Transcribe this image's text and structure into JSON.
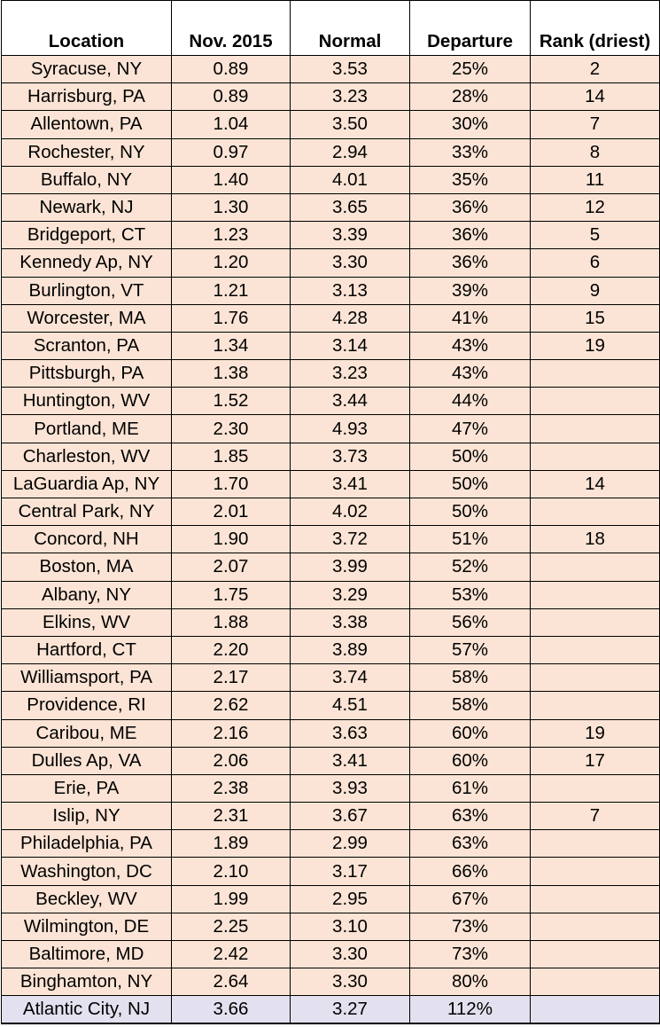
{
  "columns": [
    "Location",
    "Nov. 2015",
    "Normal",
    "Departure",
    "Rank (driest)"
  ],
  "rows": [
    [
      "Syracuse, NY",
      "0.89",
      "3.53",
      "25%",
      "2"
    ],
    [
      "Harrisburg, PA",
      "0.89",
      "3.23",
      "28%",
      "14"
    ],
    [
      "Allentown, PA",
      "1.04",
      "3.50",
      "30%",
      "7"
    ],
    [
      "Rochester, NY",
      "0.97",
      "2.94",
      "33%",
      "8"
    ],
    [
      "Buffalo, NY",
      "1.40",
      "4.01",
      "35%",
      "11"
    ],
    [
      "Newark, NJ",
      "1.30",
      "3.65",
      "36%",
      "12"
    ],
    [
      "Bridgeport, CT",
      "1.23",
      "3.39",
      "36%",
      "5"
    ],
    [
      "Kennedy Ap, NY",
      "1.20",
      "3.30",
      "36%",
      "6"
    ],
    [
      "Burlington, VT",
      "1.21",
      "3.13",
      "39%",
      "9"
    ],
    [
      "Worcester, MA",
      "1.76",
      "4.28",
      "41%",
      "15"
    ],
    [
      "Scranton, PA",
      "1.34",
      "3.14",
      "43%",
      "19"
    ],
    [
      "Pittsburgh, PA",
      "1.38",
      "3.23",
      "43%",
      ""
    ],
    [
      "Huntington, WV",
      "1.52",
      "3.44",
      "44%",
      ""
    ],
    [
      "Portland, ME",
      "2.30",
      "4.93",
      "47%",
      ""
    ],
    [
      "Charleston, WV",
      "1.85",
      "3.73",
      "50%",
      ""
    ],
    [
      "LaGuardia Ap, NY",
      "1.70",
      "3.41",
      "50%",
      "14"
    ],
    [
      "Central Park, NY",
      "2.01",
      "4.02",
      "50%",
      ""
    ],
    [
      "Concord, NH",
      "1.90",
      "3.72",
      "51%",
      "18"
    ],
    [
      "Boston, MA",
      "2.07",
      "3.99",
      "52%",
      ""
    ],
    [
      "Albany, NY",
      "1.75",
      "3.29",
      "53%",
      ""
    ],
    [
      "Elkins, WV",
      "1.88",
      "3.38",
      "56%",
      ""
    ],
    [
      "Hartford, CT",
      "2.20",
      "3.89",
      "57%",
      ""
    ],
    [
      "Williamsport, PA",
      "2.17",
      "3.74",
      "58%",
      ""
    ],
    [
      "Providence, RI",
      "2.62",
      "4.51",
      "58%",
      ""
    ],
    [
      "Caribou, ME",
      "2.16",
      "3.63",
      "60%",
      "19"
    ],
    [
      "Dulles Ap, VA",
      "2.06",
      "3.41",
      "60%",
      "17"
    ],
    [
      "Erie, PA",
      "2.38",
      "3.93",
      "61%",
      ""
    ],
    [
      "Islip, NY",
      "2.31",
      "3.67",
      "63%",
      "7"
    ],
    [
      "Philadelphia, PA",
      "1.89",
      "2.99",
      "63%",
      ""
    ],
    [
      "Washington, DC",
      "2.10",
      "3.17",
      "66%",
      ""
    ],
    [
      "Beckley, WV",
      "1.99",
      "2.95",
      "67%",
      ""
    ],
    [
      "Wilmington, DE",
      "2.25",
      "3.10",
      "73%",
      ""
    ],
    [
      "Baltimore, MD",
      "2.42",
      "3.30",
      "73%",
      ""
    ],
    [
      "Binghamton, NY",
      "2.64",
      "3.30",
      "80%",
      ""
    ],
    [
      "Atlantic City, NJ",
      "3.66",
      "3.27",
      "112%",
      ""
    ]
  ],
  "highlighted_row_index": 34,
  "colors": {
    "row_fill": "#fbe4d5",
    "highlight_fill": "#e3e1ef",
    "border": "#000000"
  }
}
